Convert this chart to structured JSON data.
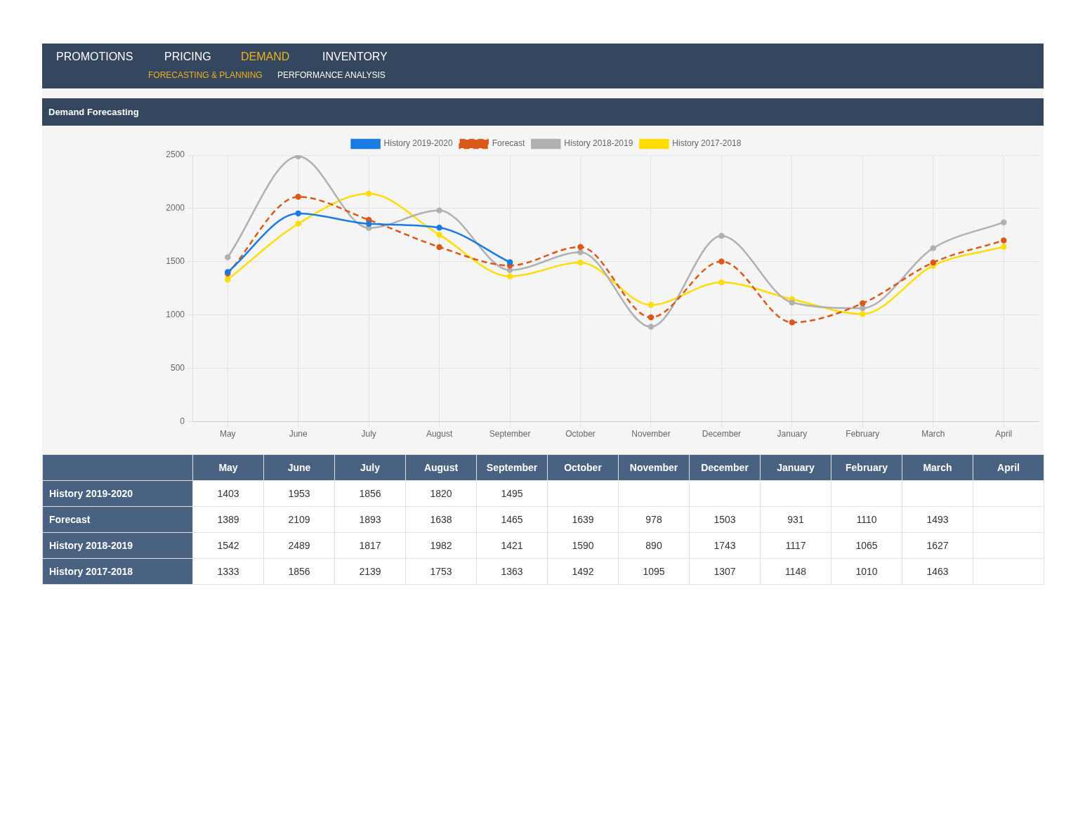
{
  "chart_data": {
    "type": "line",
    "title": "Demand Forecasting",
    "annotations": [
      "PROMOTIONS",
      "PRICING",
      "DEMAND",
      "INVENTORY",
      "FORECASTING & PLANNING",
      "PERFORMANCE ANALYSIS"
    ],
    "categories": [
      "May",
      "June",
      "July",
      "August",
      "September",
      "October",
      "November",
      "December",
      "January",
      "February",
      "March",
      "April"
    ],
    "series": [
      {
        "name": "History 2019-2020",
        "color": "#1a7be0",
        "values": [
          1403,
          1953,
          1856,
          1820,
          1495,
          null,
          null,
          null,
          null,
          null,
          null,
          null
        ],
        "value_labels": [
          "1403",
          "1953",
          "1856",
          "1820",
          "1495",
          null,
          null,
          null,
          null,
          null,
          null,
          null
        ],
        "line_style": "solid"
      },
      {
        "name": "Forecast",
        "color": "#d9581a",
        "values": [
          1389,
          2109,
          1893,
          1638,
          1465,
          1639,
          978,
          1503,
          931,
          1110,
          1493,
          1700
        ],
        "value_labels": [
          "1389",
          "2109",
          "1893",
          "1638",
          "1465",
          "1639",
          "978",
          "1503",
          "931",
          "1110",
          "1493",
          null
        ],
        "line_style": "dashed"
      },
      {
        "name": "History 2018-2019",
        "color": "#b0b0b0",
        "values": [
          1542,
          2489,
          1817,
          1982,
          1421,
          1590,
          890,
          1743,
          1117,
          1065,
          1627,
          1870
        ],
        "value_labels": [
          "1542",
          "2489",
          "1817",
          "1982",
          "1421",
          "1590",
          "890",
          "1743",
          "1117",
          "1065",
          "1627",
          null
        ],
        "line_style": "solid"
      },
      {
        "name": "History 2017-2018",
        "color": "#ffdd00",
        "values": [
          1333,
          1856,
          2139,
          1753,
          1363,
          1492,
          1095,
          1307,
          1148,
          1010,
          1463,
          1640
        ],
        "value_labels": [
          "1333",
          "1856",
          "2139",
          "1753",
          "1363",
          "1492",
          "1095",
          "1307",
          "1148",
          "1010",
          "1463",
          null
        ],
        "line_style": "solid"
      }
    ],
    "ylim": [
      0,
      2500
    ],
    "yticks": [
      0,
      500,
      1000,
      1500,
      2000,
      2500
    ],
    "grid": true,
    "legend": "top",
    "marker": "circle"
  }
}
